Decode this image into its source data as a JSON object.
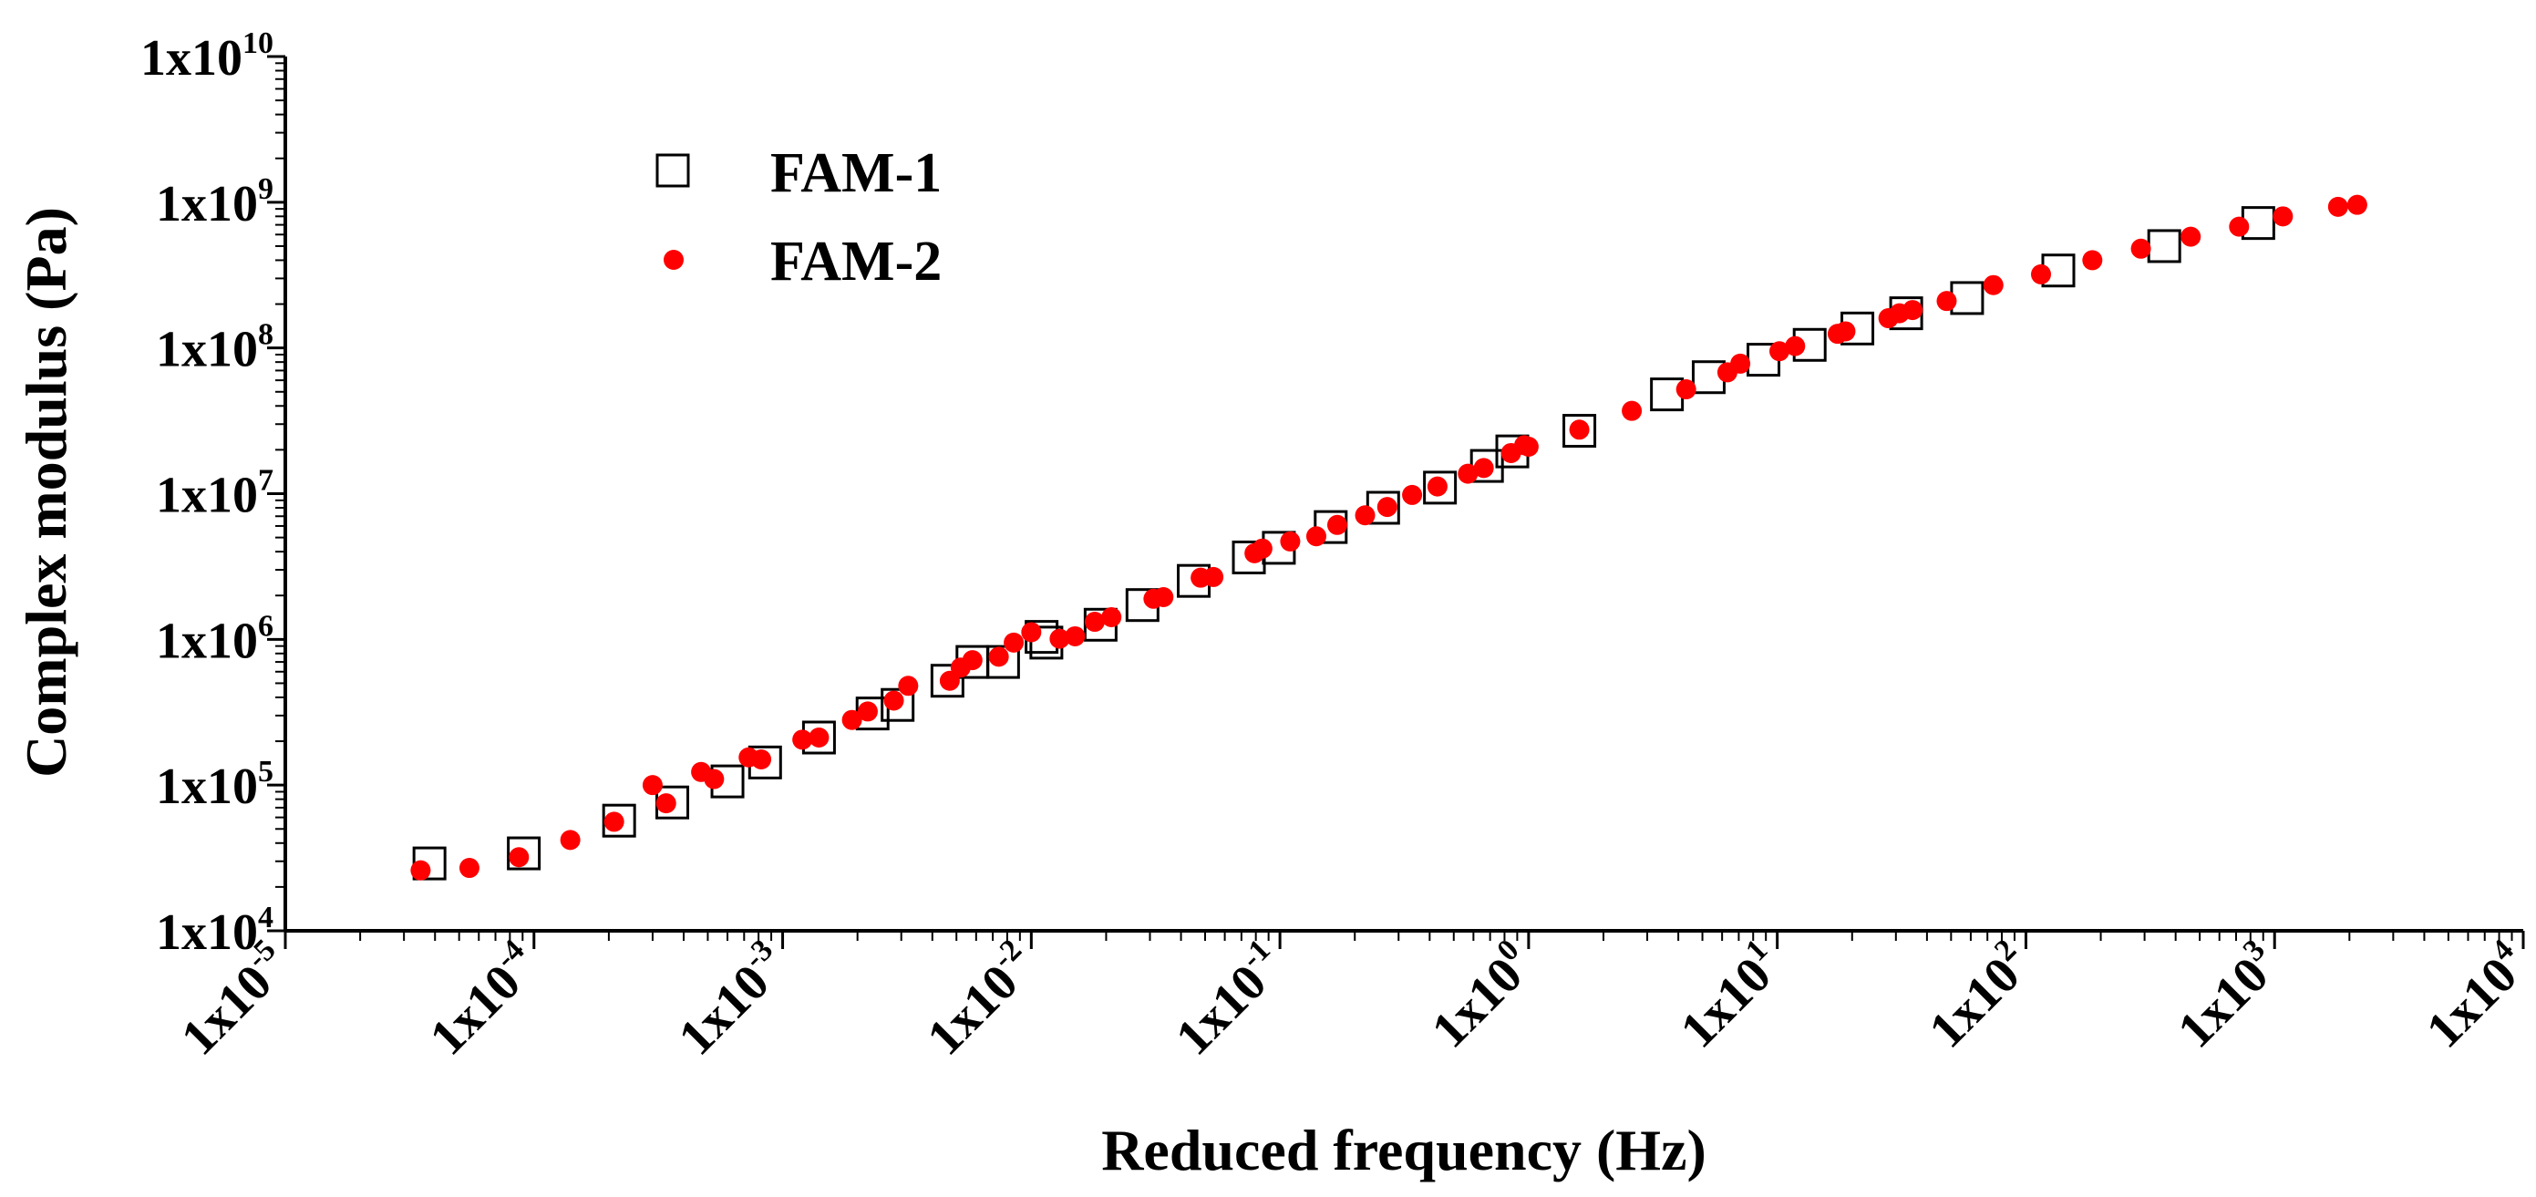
{
  "chart_data": {
    "type": "scatter",
    "title": "",
    "xlabel": "Reduced frequency (Hz)",
    "ylabel": "Complex modulus (Pa)",
    "xscale": "log",
    "yscale": "log",
    "xlim": [
      1e-05,
      10000
    ],
    "ylim": [
      10000,
      10000000000
    ],
    "x_ticks": [
      {
        "base": "1x10",
        "exp": "-5",
        "value": 1e-05
      },
      {
        "base": "1x10",
        "exp": "-4",
        "value": 0.0001
      },
      {
        "base": "1x10",
        "exp": "-3",
        "value": 0.001
      },
      {
        "base": "1x10",
        "exp": "-2",
        "value": 0.01
      },
      {
        "base": "1x10",
        "exp": "-1",
        "value": 0.1
      },
      {
        "base": "1x10",
        "exp": "0",
        "value": 1
      },
      {
        "base": "1x10",
        "exp": "1",
        "value": 10
      },
      {
        "base": "1x10",
        "exp": "2",
        "value": 100
      },
      {
        "base": "1x10",
        "exp": "3",
        "value": 1000
      },
      {
        "base": "1x10",
        "exp": "4",
        "value": 10000
      }
    ],
    "y_ticks": [
      {
        "base": "1x10",
        "exp": "4",
        "value": 10000
      },
      {
        "base": "1x10",
        "exp": "5",
        "value": 100000
      },
      {
        "base": "1x10",
        "exp": "6",
        "value": 1000000
      },
      {
        "base": "1x10",
        "exp": "7",
        "value": 10000000
      },
      {
        "base": "1x10",
        "exp": "8",
        "value": 100000000
      },
      {
        "base": "1x10",
        "exp": "9",
        "value": 1000000000
      },
      {
        "base": "1x10",
        "exp": "10",
        "value": 10000000000
      }
    ],
    "legend": {
      "position": "top-left"
    },
    "series": [
      {
        "name": "FAM-1",
        "marker": "open-square",
        "color": "#000000",
        "points": [
          [
            3.8e-05,
            29000
          ],
          [
            9.1e-05,
            34000
          ],
          [
            0.00022,
            57000
          ],
          [
            0.00036,
            76000
          ],
          [
            0.0006,
            106000
          ],
          [
            0.00085,
            143000
          ],
          [
            0.0014,
            212000
          ],
          [
            0.0023,
            310000
          ],
          [
            0.0029,
            355000
          ],
          [
            0.0046,
            520000
          ],
          [
            0.0058,
            700000
          ],
          [
            0.0077,
            700000
          ],
          [
            0.011,
            1040000
          ],
          [
            0.0115,
            950000
          ],
          [
            0.019,
            1260000
          ],
          [
            0.028,
            1720000
          ],
          [
            0.045,
            2520000
          ],
          [
            0.075,
            3650000
          ],
          [
            0.099,
            4250000
          ],
          [
            0.16,
            5900000
          ],
          [
            0.26,
            8000000
          ],
          [
            0.44,
            11000000
          ],
          [
            0.68,
            15500000
          ],
          [
            0.86,
            19500000
          ],
          [
            1.6,
            27000000
          ],
          [
            3.6,
            48000000
          ],
          [
            5.3,
            63000000
          ],
          [
            8.8,
            83000000
          ],
          [
            13.5,
            105000000
          ],
          [
            21,
            136000000
          ],
          [
            33,
            173000000
          ],
          [
            58,
            220000000
          ],
          [
            135,
            340000000
          ],
          [
            360,
            500000000
          ],
          [
            860,
            720000000
          ]
        ]
      },
      {
        "name": "FAM-2",
        "marker": "filled-circle",
        "color": "#ff0000",
        "points": [
          [
            3.5e-05,
            26000
          ],
          [
            5.5e-05,
            27000
          ],
          [
            8.7e-05,
            32000
          ],
          [
            0.00014,
            42000
          ],
          [
            0.00021,
            56000
          ],
          [
            0.0003,
            100000
          ],
          [
            0.00034,
            75000
          ],
          [
            0.00047,
            123000
          ],
          [
            0.00053,
            110000
          ],
          [
            0.00073,
            155000
          ],
          [
            0.00082,
            150000
          ],
          [
            0.0012,
            205000
          ],
          [
            0.0014,
            212000
          ],
          [
            0.0019,
            280000
          ],
          [
            0.0022,
            320000
          ],
          [
            0.0028,
            380000
          ],
          [
            0.0032,
            480000
          ],
          [
            0.0047,
            520000
          ],
          [
            0.0052,
            640000
          ],
          [
            0.0058,
            720000
          ],
          [
            0.0074,
            760000
          ],
          [
            0.0085,
            950000
          ],
          [
            0.01,
            1120000
          ],
          [
            0.013,
            1010000
          ],
          [
            0.015,
            1050000
          ],
          [
            0.018,
            1320000
          ],
          [
            0.021,
            1420000
          ],
          [
            0.031,
            1900000
          ],
          [
            0.034,
            1950000
          ],
          [
            0.048,
            2650000
          ],
          [
            0.054,
            2680000
          ],
          [
            0.079,
            3900000
          ],
          [
            0.085,
            4200000
          ],
          [
            0.11,
            4700000
          ],
          [
            0.14,
            5100000
          ],
          [
            0.17,
            6100000
          ],
          [
            0.22,
            7100000
          ],
          [
            0.27,
            8100000
          ],
          [
            0.34,
            9800000
          ],
          [
            0.43,
            11200000
          ],
          [
            0.57,
            13700000
          ],
          [
            0.66,
            15000000
          ],
          [
            0.85,
            19000000
          ],
          [
            0.96,
            21500000
          ],
          [
            1.0,
            21000000
          ],
          [
            1.6,
            27500000
          ],
          [
            2.6,
            37000000
          ],
          [
            4.3,
            52000000
          ],
          [
            6.3,
            68000000
          ],
          [
            7.1,
            78000000
          ],
          [
            10.2,
            95000000
          ],
          [
            11.8,
            103000000
          ],
          [
            17.5,
            125000000
          ],
          [
            18.8,
            130000000
          ],
          [
            28,
            160000000
          ],
          [
            31,
            173000000
          ],
          [
            35,
            182000000
          ],
          [
            48,
            210000000
          ],
          [
            74,
            270000000
          ],
          [
            115,
            320000000
          ],
          [
            185,
            400000000
          ],
          [
            290,
            480000000
          ],
          [
            460,
            580000000
          ],
          [
            720,
            680000000
          ],
          [
            1080,
            800000000
          ],
          [
            1800,
            930000000
          ],
          [
            2150,
            960000000
          ]
        ]
      }
    ]
  }
}
